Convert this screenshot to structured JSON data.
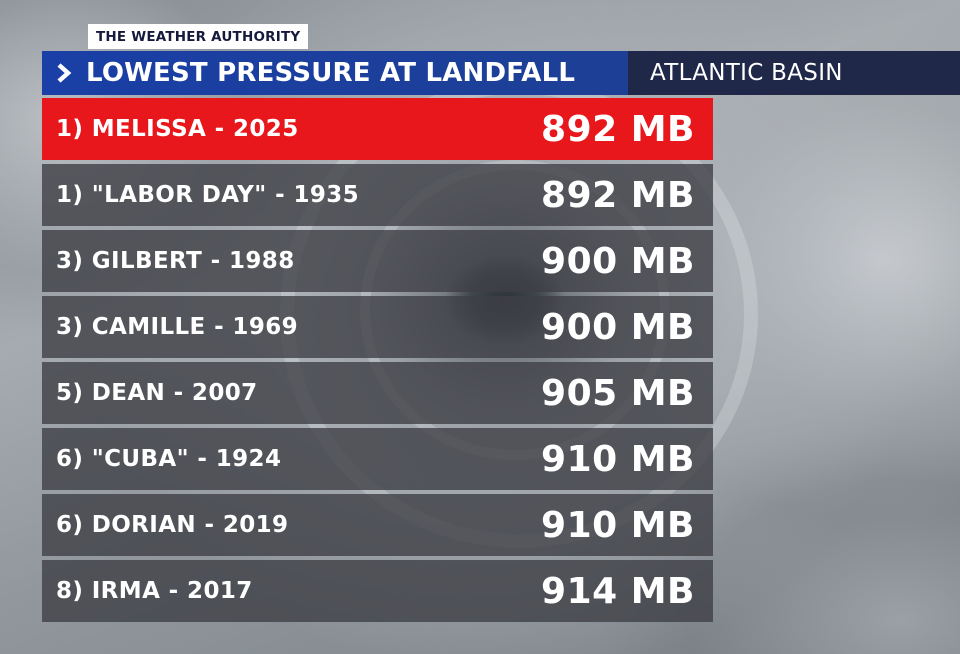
{
  "brand_tag": "THE WEATHER AUTHORITY",
  "header": {
    "chevron_icon": "chevron-right-icon",
    "title": "LOWEST PRESSURE AT LANDFALL",
    "subtitle": "ATLANTIC BASIN"
  },
  "colors": {
    "highlight": "#e8171c",
    "header_blue": "#1a3fa6",
    "header_navy": "#20284a"
  },
  "rows": [
    {
      "label": "1) MELISSA - 2025",
      "value": "892 MB",
      "highlighted": true
    },
    {
      "label": "1) \"LABOR DAY\" - 1935",
      "value": "892 MB"
    },
    {
      "label": "3) GILBERT - 1988",
      "value": "900 MB"
    },
    {
      "label": "3) CAMILLE - 1969",
      "value": "900 MB"
    },
    {
      "label": "5) DEAN - 2007",
      "value": "905 MB"
    },
    {
      "label": "6) \"CUBA\" - 1924",
      "value": "910 MB"
    },
    {
      "label": "6) DORIAN - 2019",
      "value": "910 MB"
    },
    {
      "label": "8) IRMA - 2017",
      "value": "914 MB"
    }
  ]
}
